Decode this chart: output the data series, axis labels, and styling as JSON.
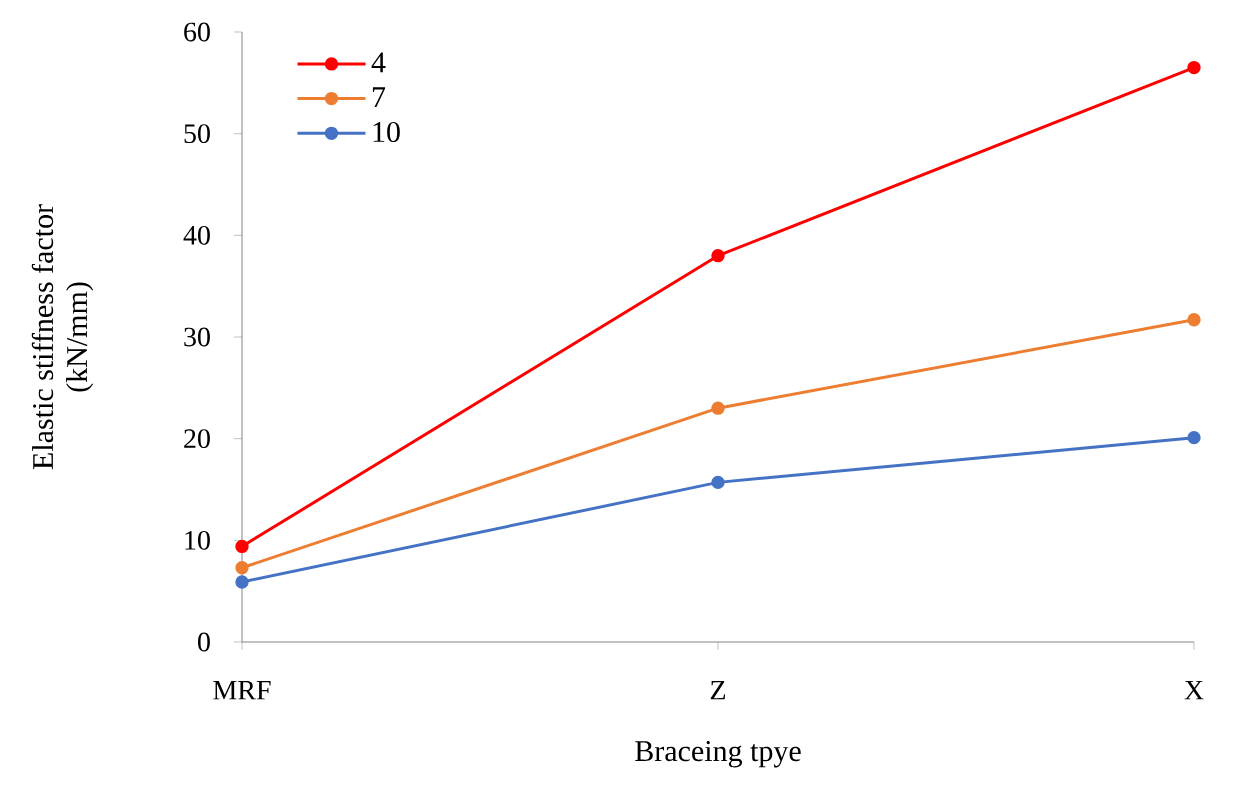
{
  "chart_data": {
    "type": "line",
    "xlabel": "Braceing tpye",
    "ylabel": "Elastic stiffness factor\n(kN/mm)",
    "categories": [
      "MRF",
      "Z",
      "X"
    ],
    "ylim": [
      0,
      60
    ],
    "yticks": [
      0,
      10,
      20,
      30,
      40,
      50,
      60
    ],
    "legend": "top left",
    "marker": "circle",
    "line_style": "solid",
    "grid": false,
    "series": [
      {
        "name": "4",
        "color": "#ff0000",
        "values": [
          9.4,
          38.0,
          56.5
        ]
      },
      {
        "name": "7",
        "color": "#ed7d31",
        "values": [
          7.3,
          23.0,
          31.7
        ]
      },
      {
        "name": "10",
        "color": "#4472c4",
        "values": [
          5.9,
          15.7,
          20.1
        ]
      }
    ]
  }
}
